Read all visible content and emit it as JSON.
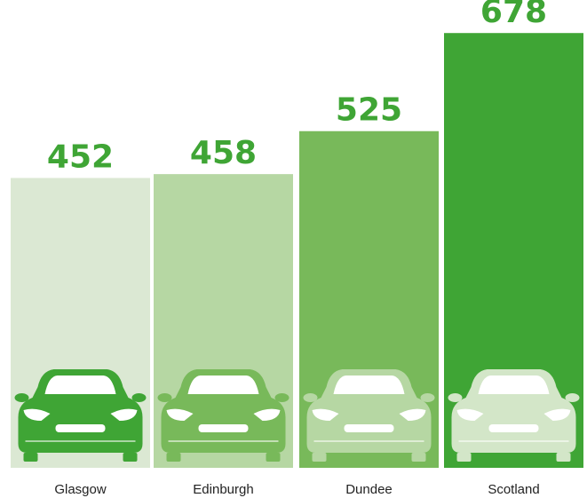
{
  "chart_data": {
    "type": "bar",
    "title": "",
    "xlabel": "",
    "ylabel": "",
    "categories": [
      "Glasgow",
      "Edinburgh",
      "Dundee",
      "Scotland"
    ],
    "values": [
      452,
      458,
      525,
      678
    ],
    "value_labels": [
      "452",
      "458",
      "525",
      "678"
    ],
    "grid": false,
    "legend": "none",
    "bar_icon": "car-icon"
  },
  "colors": {
    "value_label": "#3fa535",
    "category_label": "#222222",
    "bars": [
      "#dbe8d3",
      "#b6d7a3",
      "#78b95a",
      "#3fa535"
    ],
    "cars": [
      "#3fa535",
      "#78b95a",
      "#b6d7a3",
      "#d3e6c8"
    ]
  }
}
